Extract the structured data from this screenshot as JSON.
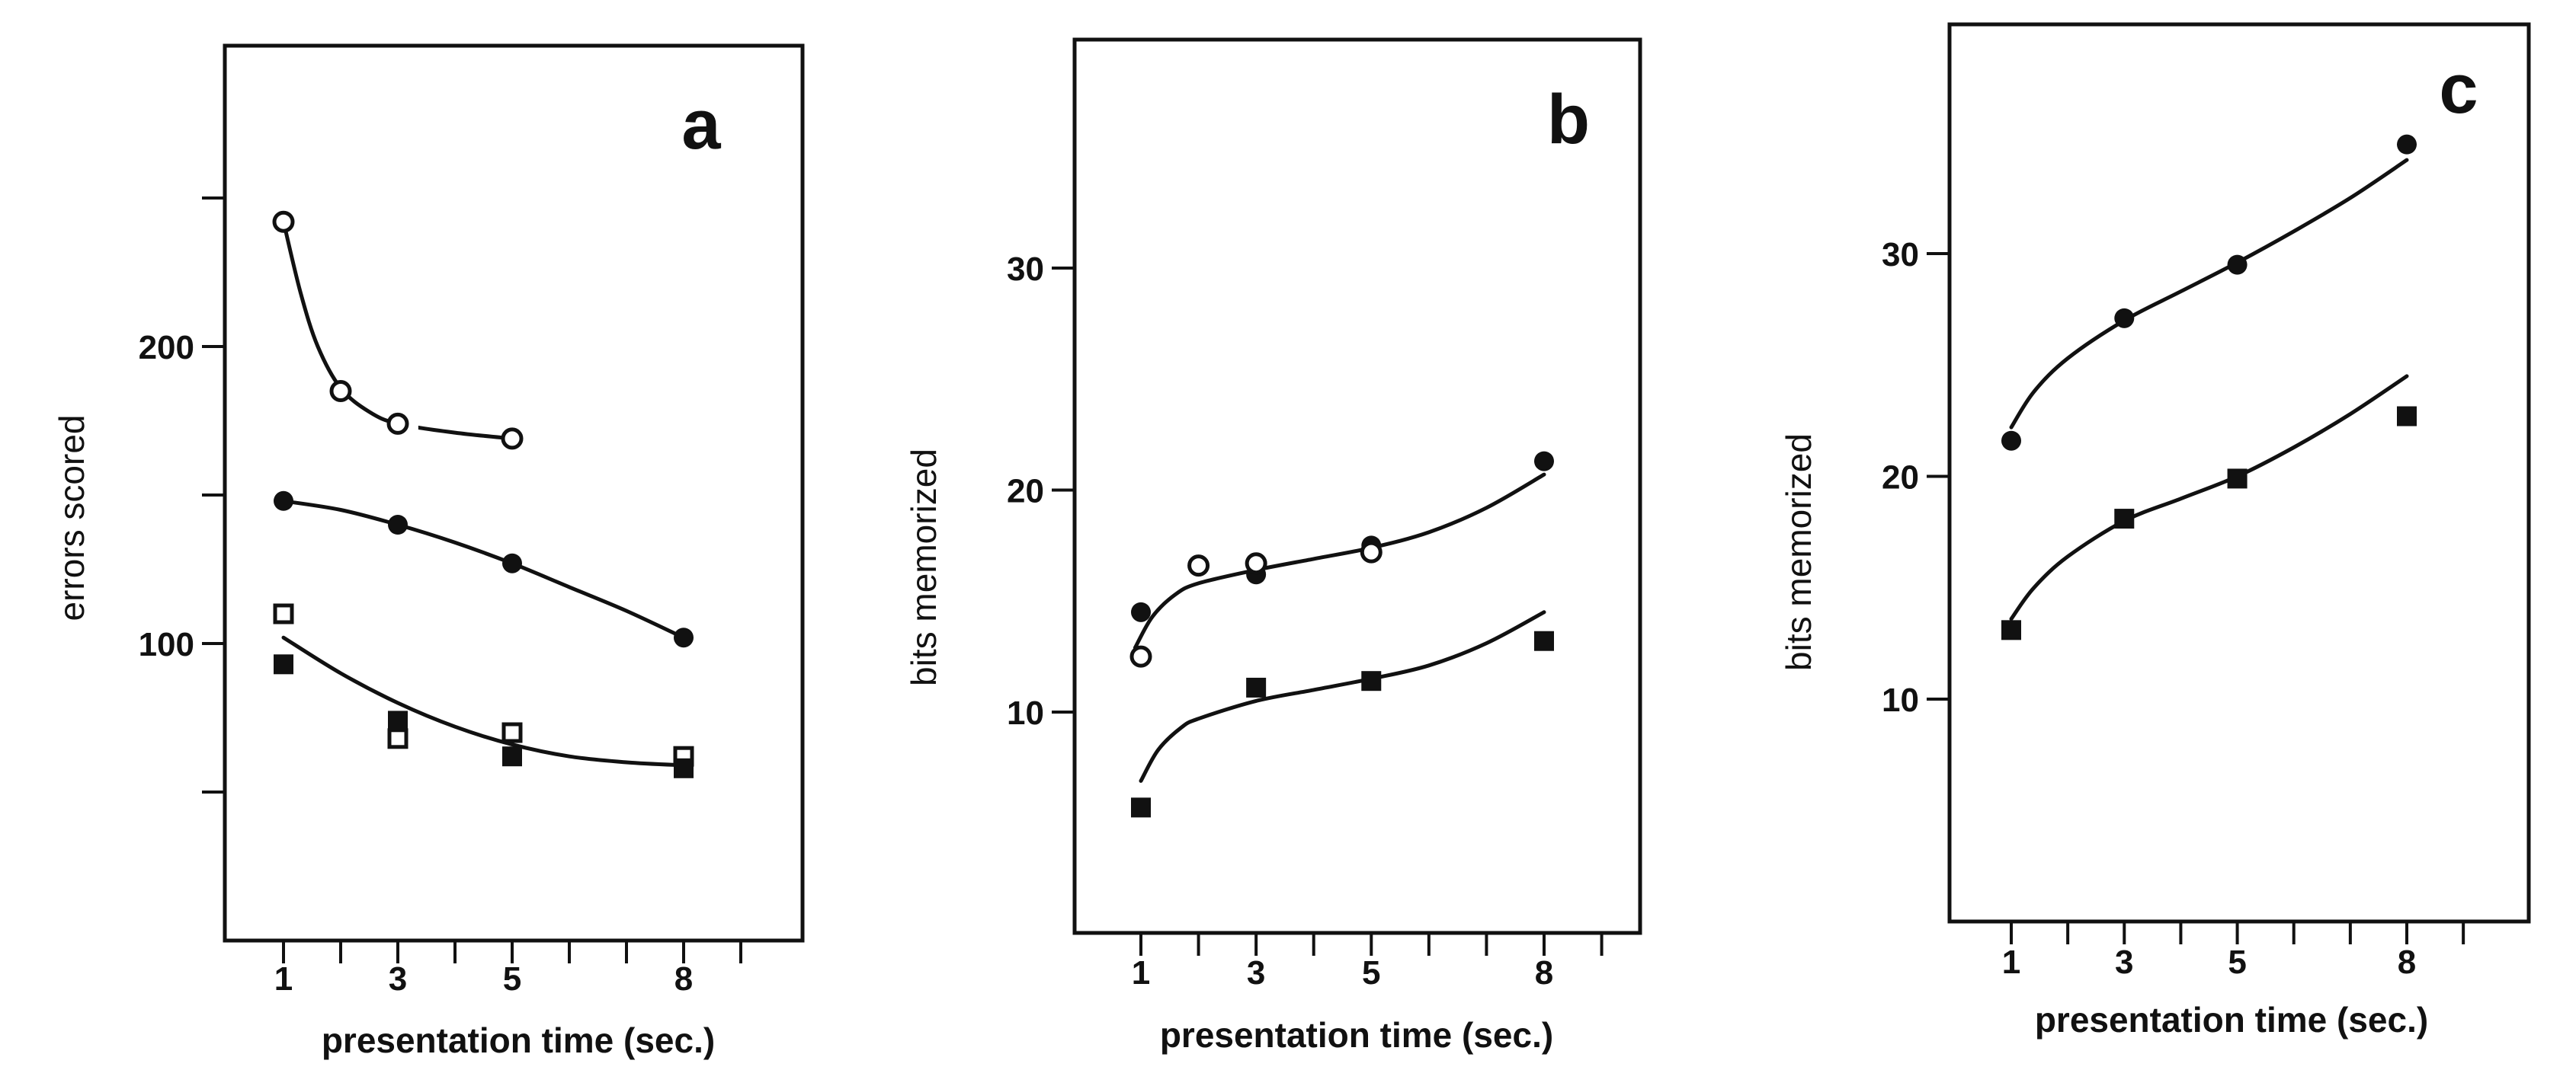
{
  "chart_data": [
    {
      "type": "scatter",
      "panel_label": "a",
      "title": "",
      "xlabel": "presentation time (sec.)",
      "ylabel": "errors scored",
      "xlim": [
        0,
        10
      ],
      "ylim": [
        0,
        300
      ],
      "xticks": [
        1,
        2,
        3,
        4,
        5,
        6,
        7,
        8,
        9
      ],
      "xtick_labels": [
        {
          "value": 1,
          "label": "1"
        },
        {
          "value": 3,
          "label": "3"
        },
        {
          "value": 5,
          "label": "5"
        },
        {
          "value": 8,
          "label": "8"
        }
      ],
      "yticks": [
        50,
        100,
        150,
        200,
        250
      ],
      "ytick_labels": [
        {
          "value": 100,
          "label": "100"
        },
        {
          "value": 200,
          "label": "200"
        }
      ],
      "grid": false,
      "legend": "none",
      "series": [
        {
          "marker": "open-circle",
          "points": [
            [
              1,
              242
            ],
            [
              2,
              185
            ],
            [
              3,
              174
            ],
            [
              5,
              169
            ]
          ],
          "curve": [
            [
              1,
              242
            ],
            [
              1.3,
              218
            ],
            [
              1.6,
              200
            ],
            [
              2,
              186
            ],
            [
              2.5,
              178
            ],
            [
              3,
              174
            ],
            [
              4,
              171
            ],
            [
              5,
              169
            ]
          ],
          "curve_gap": [
            3.15,
            3.3
          ]
        },
        {
          "marker": "filled-circle",
          "points": [
            [
              1,
              148
            ],
            [
              3,
              140
            ],
            [
              5,
              127
            ],
            [
              8,
              102
            ]
          ],
          "curve": [
            [
              1,
              148
            ],
            [
              2,
              145
            ],
            [
              3,
              140
            ],
            [
              4,
              134
            ],
            [
              5,
              127
            ],
            [
              6,
              119
            ],
            [
              7,
              111
            ],
            [
              8,
              102
            ]
          ]
        },
        {
          "marker": "open-square",
          "points": [
            [
              1,
              110
            ],
            [
              3,
              68
            ],
            [
              5,
              70
            ],
            [
              8,
              62
            ]
          ]
        },
        {
          "marker": "filled-square",
          "points": [
            [
              1,
              93
            ],
            [
              3,
              74
            ],
            [
              5,
              62
            ],
            [
              8,
              58
            ]
          ],
          "curve": [
            [
              1,
              102
            ],
            [
              2,
              90
            ],
            [
              3,
              80
            ],
            [
              4,
              72
            ],
            [
              5,
              66
            ],
            [
              6,
              62
            ],
            [
              7,
              60
            ],
            [
              8,
              59
            ]
          ]
        }
      ]
    },
    {
      "type": "scatter",
      "panel_label": "b",
      "title": "",
      "xlabel": "presentation time (sec.)",
      "ylabel": "bits memorized",
      "xlim": [
        0,
        10
      ],
      "ylim": [
        0,
        40
      ],
      "xticks": [
        1,
        2,
        3,
        4,
        5,
        6,
        7,
        8,
        9
      ],
      "xtick_labels": [
        {
          "value": 1,
          "label": "1"
        },
        {
          "value": 3,
          "label": "3"
        },
        {
          "value": 5,
          "label": "5"
        },
        {
          "value": 8,
          "label": "8"
        }
      ],
      "yticks": [
        10,
        20,
        30
      ],
      "ytick_labels": [
        {
          "value": 10,
          "label": "10"
        },
        {
          "value": 20,
          "label": "20"
        },
        {
          "value": 30,
          "label": "30"
        }
      ],
      "grid": false,
      "legend": "none",
      "series": [
        {
          "marker": "filled-circle",
          "points": [
            [
              1,
              14.5
            ],
            [
              3,
              16.2
            ],
            [
              5,
              17.5
            ],
            [
              8,
              21.3
            ]
          ]
        },
        {
          "marker": "open-circle",
          "points": [
            [
              1,
              12.5
            ],
            [
              2,
              16.6
            ],
            [
              3,
              16.7
            ],
            [
              5,
              17.2
            ]
          ],
          "curve": [
            [
              0.9,
              12.9
            ],
            [
              1.2,
              14.3
            ],
            [
              1.6,
              15.3
            ],
            [
              2,
              15.8
            ],
            [
              3,
              16.4
            ],
            [
              4,
              16.9
            ],
            [
              5,
              17.4
            ],
            [
              6,
              18.1
            ],
            [
              7,
              19.2
            ],
            [
              8,
              20.7
            ]
          ]
        },
        {
          "marker": "filled-square",
          "points": [
            [
              1,
              5.7
            ],
            [
              3,
              11.1
            ],
            [
              5,
              11.4
            ],
            [
              8,
              13.2
            ]
          ],
          "curve": [
            [
              1,
              6.9
            ],
            [
              1.3,
              8.3
            ],
            [
              1.7,
              9.3
            ],
            [
              2,
              9.7
            ],
            [
              3,
              10.5
            ],
            [
              4,
              11.0
            ],
            [
              5,
              11.5
            ],
            [
              6,
              12.1
            ],
            [
              7,
              13.1
            ],
            [
              8,
              14.5
            ]
          ]
        }
      ]
    },
    {
      "type": "scatter",
      "panel_label": "c",
      "title": "",
      "xlabel": "presentation time (sec.)",
      "ylabel": "bits memorized",
      "xlim": [
        0,
        10
      ],
      "ylim": [
        0,
        40
      ],
      "xticks": [
        1,
        2,
        3,
        4,
        5,
        6,
        7,
        8,
        9
      ],
      "xtick_labels": [
        {
          "value": 1,
          "label": "1"
        },
        {
          "value": 3,
          "label": "3"
        },
        {
          "value": 5,
          "label": "5"
        },
        {
          "value": 8,
          "label": "8"
        }
      ],
      "yticks": [
        10,
        20,
        30
      ],
      "ytick_labels": [
        {
          "value": 10,
          "label": "10"
        },
        {
          "value": 20,
          "label": "20"
        },
        {
          "value": 30,
          "label": "30"
        }
      ],
      "grid": false,
      "legend": "none",
      "series": [
        {
          "marker": "filled-circle",
          "points": [
            [
              1,
              21.6
            ],
            [
              3,
              27.1
            ],
            [
              5,
              29.5
            ],
            [
              8,
              34.9
            ]
          ],
          "curve": [
            [
              1,
              22.2
            ],
            [
              1.4,
              23.8
            ],
            [
              2,
              25.3
            ],
            [
              3,
              27.0
            ],
            [
              4,
              28.3
            ],
            [
              5,
              29.6
            ],
            [
              6,
              31.0
            ],
            [
              7,
              32.5
            ],
            [
              8,
              34.2
            ]
          ]
        },
        {
          "marker": "filled-square",
          "points": [
            [
              1,
              13.1
            ],
            [
              3,
              18.1
            ],
            [
              5,
              19.9
            ],
            [
              8,
              22.7
            ]
          ],
          "curve": [
            [
              1,
              13.6
            ],
            [
              1.4,
              15.0
            ],
            [
              2,
              16.4
            ],
            [
              3,
              18.0
            ],
            [
              4,
              19.0
            ],
            [
              5,
              20.0
            ],
            [
              6,
              21.3
            ],
            [
              7,
              22.8
            ],
            [
              8,
              24.5
            ]
          ]
        }
      ]
    }
  ]
}
